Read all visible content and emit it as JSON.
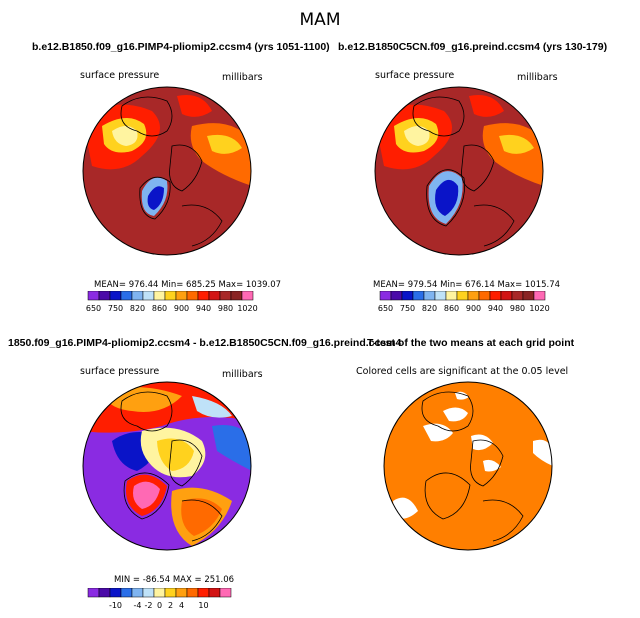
{
  "figure_title": "MAM",
  "colors": {
    "scale_abs": [
      "#8a2be2",
      "#4b0aa8",
      "#0a14c8",
      "#2a6ee8",
      "#7fb4f0",
      "#bfe2f8",
      "#fff4a0",
      "#ffd21e",
      "#ffa010",
      "#ff6a00",
      "#ff1e00",
      "#d21414",
      "#a82828",
      "#8a2424",
      "#ff69b4"
    ],
    "scale_diff": [
      "#8a2be2",
      "#4b0aa8",
      "#0a14c8",
      "#2a6ee8",
      "#7fb4f0",
      "#bfe2f8",
      "#fff4a0",
      "#ffd21e",
      "#ffa010",
      "#ff6a00",
      "#ff1e00",
      "#d21414",
      "#ff69b4"
    ],
    "signif": "#ff7f00"
  },
  "chart_data": [
    {
      "type": "heatmap",
      "projection": "polar-stereographic (north)",
      "title": "b.e12.B1850.f09_g16.PIMP4-pliomip2.ccsm4 (yrs 1051-1100)",
      "left_label": "surface pressure",
      "right_label": "millibars",
      "stats": "MEAN= 976.44   Min= 685.25   Max= 1039.07",
      "colorbar_labels": [
        "650",
        "750",
        "820",
        "860",
        "900",
        "940",
        "980",
        "1020"
      ]
    },
    {
      "type": "heatmap",
      "projection": "polar-stereographic (north)",
      "title": "b.e12.B1850C5CN.f09_g16.preind.ccsm4 (yrs 130-179)",
      "left_label": "surface pressure",
      "right_label": "millibars",
      "stats": "MEAN= 979.54   Min= 676.14   Max= 1015.74",
      "colorbar_labels": [
        "650",
        "750",
        "820",
        "860",
        "900",
        "940",
        "980",
        "1020"
      ]
    },
    {
      "type": "heatmap",
      "projection": "polar-stereographic (north)",
      "title": "1850.f09_g16.PIMP4-pliomip2.ccsm4 - b.e12.B1850C5CN.f09_g16.preind.ccsm4",
      "left_label": "surface pressure",
      "right_label": "millibars",
      "stats": "MIN = -86.54 MAX = 251.06",
      "colorbar_labels": [
        "-10",
        "-4",
        "-2",
        "0",
        "2",
        "4",
        "10"
      ]
    },
    {
      "type": "heatmap",
      "projection": "polar-stereographic (north)",
      "title": "T-test of the two means at each grid point",
      "left_label": "Colored cells are significant at the 0.05 level"
    }
  ]
}
